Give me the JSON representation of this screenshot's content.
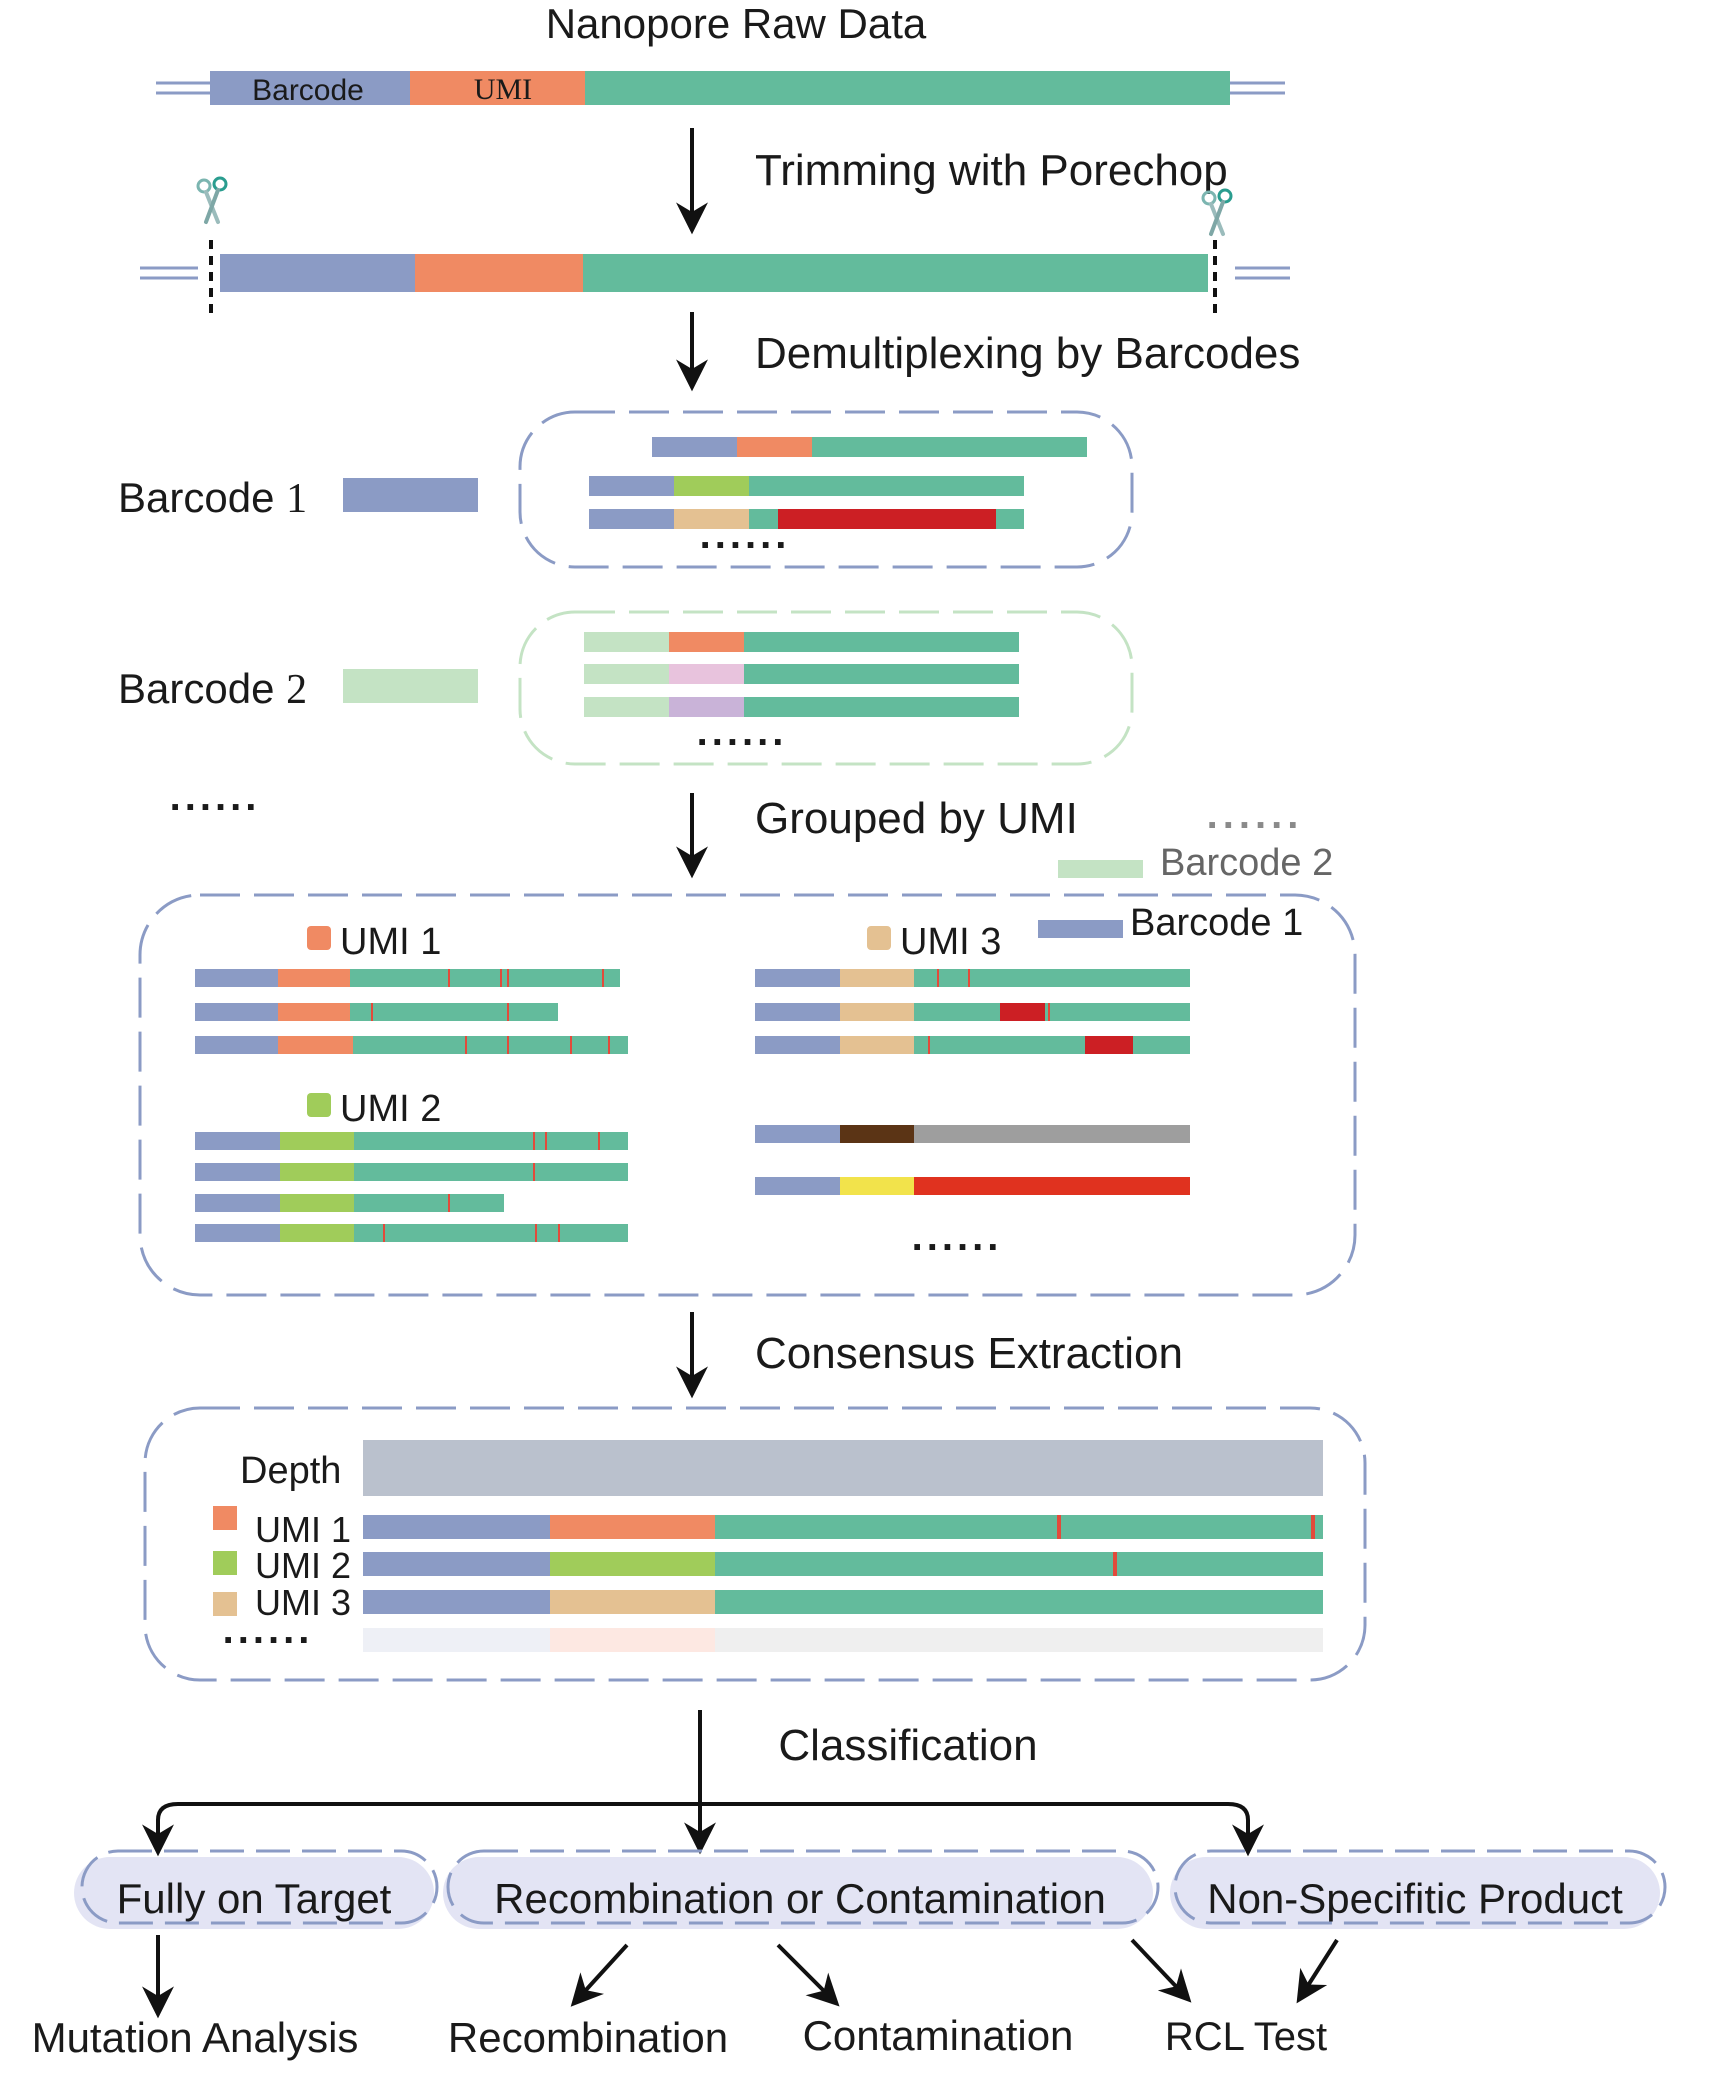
{
  "title": "Nanopore Raw Data",
  "raw_read": {
    "barcode_label": "Barcode",
    "umi_label": "UMI"
  },
  "steps": {
    "trimming": "Trimming with Porechop",
    "demux": "Demultiplexing by Barcodes",
    "grouping": "Grouped by UMI",
    "consensus": "Consensus Extraction",
    "classification": "Classification"
  },
  "demux": {
    "barcode1_label": "Barcode",
    "barcode1_num": "1",
    "barcode2_label": "Barcode",
    "barcode2_num": "2",
    "ellipsis": "......"
  },
  "umi_groups": {
    "umi1": "UMI 1",
    "umi2": "UMI 2",
    "umi3": "UMI 3",
    "legend_barcode2": "Barcode 2",
    "legend_barcode1": "Barcode 1",
    "legend_dots": "......",
    "ellipsis": "......"
  },
  "consensus": {
    "depth": "Depth",
    "umi1": "UMI 1",
    "umi2": "UMI 2",
    "umi3": "UMI 3",
    "ellipsis": "......"
  },
  "categories": {
    "fully": "Fully on Target",
    "recomb_contam": "Recombination or Contamination",
    "nonspecific": "Non-Specifitic Product"
  },
  "outcomes": {
    "mutation": "Mutation Analysis",
    "recombination": "Recombination",
    "contamination": "Contamination",
    "rcl": "RCL Test"
  },
  "colors": {
    "barcode1": "#8b9bc5",
    "barcode2": "#c4e3c4",
    "umi_orange": "#f08a63",
    "umi_green": "#a0cc5a",
    "umi_tan": "#e4c192",
    "umi_pink": "#e8c3dd",
    "umi_lavender": "#c9b3d8",
    "insert": "#63bb9c",
    "mutation_red": "#cc1f24",
    "mutation_tick": "#e24a3b",
    "depth": "#bac1cd",
    "box_border": "#8b9bc5",
    "pill_fill": "#e3e4f4"
  },
  "icons": [
    "scissors-icon",
    "arrow-down-icon"
  ]
}
